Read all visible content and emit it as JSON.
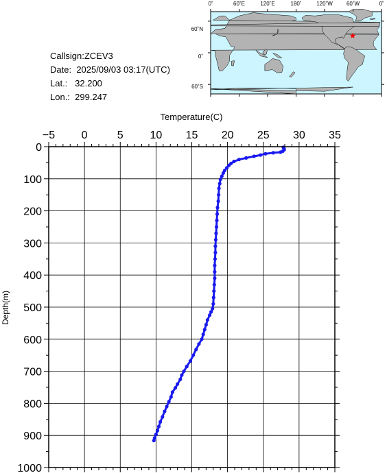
{
  "info": {
    "callsign_label": "Callsign:",
    "callsign": "ZCEV3",
    "date_label": "Date:",
    "date": "2025/09/03 03:17(UTC)",
    "lat_label": "Lat.:",
    "lat": "32.200",
    "lon_label": "Lon.:",
    "lon": "299.247"
  },
  "map": {
    "lon_ticks": [
      "0˚",
      "60˚E",
      "120˚E",
      "180˚",
      "120˚W",
      "60˚W",
      "0˚"
    ],
    "lat_ticks": [
      "60˚N",
      "0˚",
      "60˚S"
    ],
    "ocean_color": "#ccf5ff",
    "land_color": "#b3b3b3",
    "marker_color": "#ff0000",
    "marker": {
      "lon": 299.247,
      "lat": 32.2
    }
  },
  "chart_data": {
    "type": "line",
    "xlabel": "Temperature(C)",
    "ylabel": "Depth(m)",
    "xlim": [
      -5,
      35
    ],
    "ylim": [
      0,
      1000
    ],
    "y_inverted": true,
    "x_ticks": [
      -5,
      0,
      5,
      10,
      15,
      20,
      25,
      30,
      35
    ],
    "y_ticks": [
      0,
      100,
      200,
      300,
      400,
      500,
      600,
      700,
      800,
      900,
      1000
    ],
    "grid": true,
    "series_color": "#1a1aee",
    "series": [
      {
        "points": [
          [
            27.8,
            2
          ],
          [
            27.9,
            6
          ],
          [
            27.9,
            10
          ],
          [
            27.7,
            14
          ],
          [
            27.4,
            17
          ],
          [
            26.4,
            19
          ],
          [
            25.3,
            22
          ],
          [
            24.6,
            26
          ],
          [
            23.7,
            30
          ],
          [
            22.6,
            35
          ],
          [
            21.6,
            40
          ],
          [
            20.9,
            46
          ],
          [
            20.5,
            52
          ],
          [
            20.2,
            58
          ],
          [
            19.9,
            66
          ],
          [
            19.6,
            74
          ],
          [
            19.4,
            82
          ],
          [
            19.2,
            92
          ],
          [
            19.0,
            102
          ],
          [
            18.9,
            115
          ],
          [
            18.8,
            130
          ],
          [
            18.75,
            150
          ],
          [
            18.7,
            170
          ],
          [
            18.6,
            190
          ],
          [
            18.55,
            210
          ],
          [
            18.5,
            230
          ],
          [
            18.45,
            250
          ],
          [
            18.4,
            270
          ],
          [
            18.35,
            290
          ],
          [
            18.3,
            310
          ],
          [
            18.3,
            330
          ],
          [
            18.25,
            350
          ],
          [
            18.2,
            370
          ],
          [
            18.2,
            390
          ],
          [
            18.2,
            410
          ],
          [
            18.15,
            430
          ],
          [
            18.1,
            450
          ],
          [
            18.05,
            470
          ],
          [
            18.0,
            490
          ],
          [
            17.9,
            505
          ],
          [
            17.7,
            515
          ],
          [
            17.5,
            525
          ],
          [
            17.2,
            540
          ],
          [
            17.0,
            555
          ],
          [
            16.8,
            570
          ],
          [
            16.6,
            585
          ],
          [
            16.4,
            600
          ],
          [
            16.0,
            615
          ],
          [
            15.6,
            632
          ],
          [
            15.2,
            650
          ],
          [
            14.8,
            668
          ],
          [
            14.3,
            685
          ],
          [
            13.9,
            700
          ],
          [
            13.6,
            712
          ],
          [
            13.4,
            725
          ],
          [
            13.0,
            740
          ],
          [
            12.7,
            752
          ],
          [
            12.3,
            765
          ],
          [
            12.1,
            780
          ],
          [
            11.8,
            795
          ],
          [
            11.5,
            810
          ],
          [
            11.2,
            825
          ],
          [
            10.9,
            842
          ],
          [
            10.6,
            858
          ],
          [
            10.4,
            872
          ],
          [
            10.2,
            885
          ],
          [
            10.0,
            897
          ],
          [
            9.8,
            908
          ],
          [
            9.7,
            916
          ]
        ]
      }
    ]
  }
}
